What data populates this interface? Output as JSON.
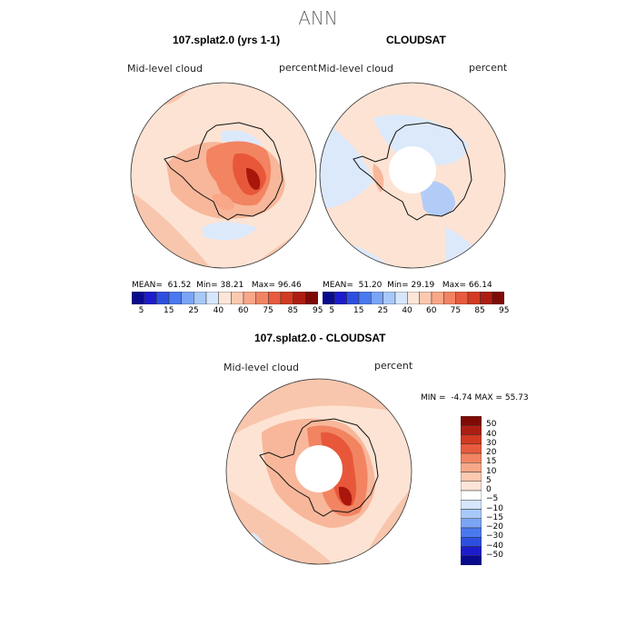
{
  "main_title": "ANN",
  "panels": [
    {
      "title": "107.splat2.0 (yrs 1-1)",
      "variable": "Mid-level cloud",
      "units": "percent",
      "stats": {
        "mean_label": "MEAN=",
        "mean": "61.52",
        "min_label": "Min=",
        "min": "38.21",
        "max_label": "Max=",
        "max": "96.46"
      }
    },
    {
      "title": "CLOUDSAT",
      "variable": "Mid-level cloud",
      "units": "percent",
      "stats": {
        "mean_label": "MEAN=",
        "mean": "51.20",
        "min_label": "Min=",
        "min": "29.19",
        "max_label": "Max=",
        "max": "66.14"
      }
    },
    {
      "title": "107.splat2.0 - CLOUDSAT",
      "variable": "Mid-level cloud",
      "units": "percent",
      "stats": {
        "min_label": "MIN =",
        "min": "-4.74",
        "max_label": "MAX =",
        "max": "55.73"
      }
    }
  ],
  "colorbar_abs": {
    "ticks": [
      "5",
      "15",
      "25",
      "40",
      "60",
      "75",
      "85",
      "95"
    ],
    "colors": [
      "#0a0a8c",
      "#1c1ccc",
      "#2d4fe0",
      "#4a78ee",
      "#7aa4f5",
      "#a8c8fa",
      "#d6e6fb",
      "#fde5d8",
      "#fcc8b0",
      "#f8a888",
      "#f28462",
      "#e85a3e",
      "#d23a22",
      "#ad1d12",
      "#7e0a05"
    ]
  },
  "colorbar_diff": {
    "ticks": [
      "50",
      "40",
      "30",
      "20",
      "15",
      "10",
      "5",
      "0",
      "−5",
      "−10",
      "−15",
      "−20",
      "−30",
      "−40",
      "−50"
    ],
    "colors": [
      "#7e0a05",
      "#ad1d12",
      "#d23a22",
      "#e85a3e",
      "#f28462",
      "#f8a888",
      "#fcc8b0",
      "#fde5d8",
      "#ffffff",
      "#d6e6fb",
      "#a8c8fa",
      "#7aa4f5",
      "#4a78ee",
      "#2d4fe0",
      "#1c1ccc",
      "#0a0a8c"
    ]
  },
  "colors": {
    "light_red": "#fde3d3",
    "mid_red": "#f8b79a",
    "red": "#e8573a",
    "dark_red": "#a8160c",
    "light_blue": "#dce9fb",
    "blue": "#b3ccf7"
  }
}
